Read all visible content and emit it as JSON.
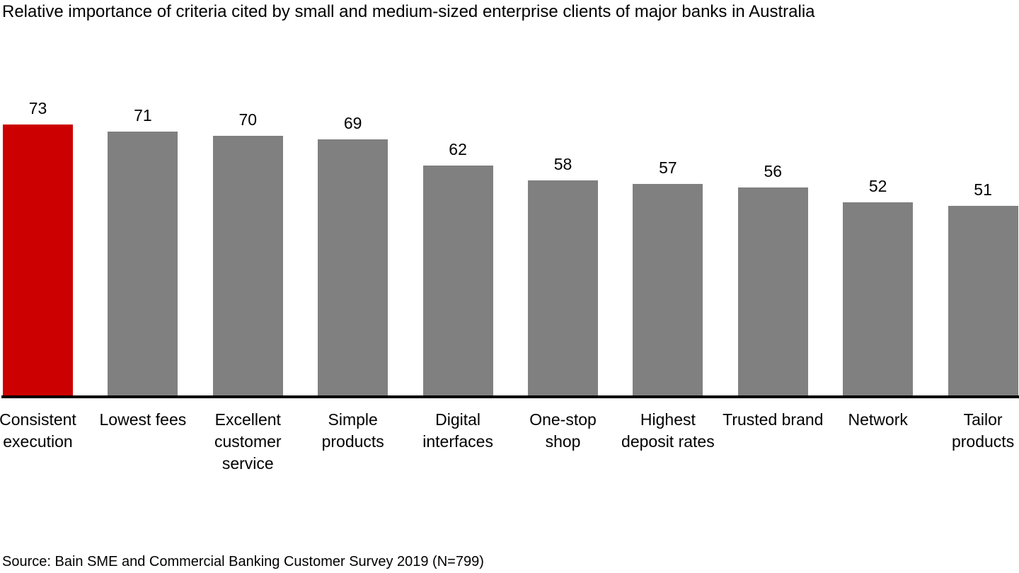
{
  "page": {
    "title": "Relative importance of criteria cited by small and medium-sized enterprise clients of major banks in Australia",
    "source": "Source: Bain SME and Commercial Banking Customer Survey 2019 (N=799)"
  },
  "colors": {
    "highlight_bar": "#CC0000",
    "bar": "#808080",
    "axis": "#000000",
    "text": "#000000",
    "background": "#FFFFFF"
  },
  "chart_data": {
    "type": "bar",
    "title": "Relative importance of criteria cited by small and medium-sized enterprise clients of major banks in Australia",
    "categories": [
      "Consistent execution",
      "Lowest fees",
      "Excellent customer service",
      "Simple products",
      "Digital interfaces",
      "One-stop shop",
      "Highest deposit rates",
      "Trusted brand",
      "Network",
      "Tailor products"
    ],
    "values": [
      73,
      71,
      70,
      69,
      62,
      58,
      57,
      56,
      52,
      51
    ],
    "highlight_index": 0,
    "value_labels_shown": true,
    "xlabel": "",
    "ylabel": "",
    "ylim": [
      0,
      80
    ],
    "grid": false,
    "legend": false,
    "axis_line": "bottom-only",
    "source": "Source: Bain SME and Commercial Banking Customer Survey 2019 (N=799)"
  }
}
